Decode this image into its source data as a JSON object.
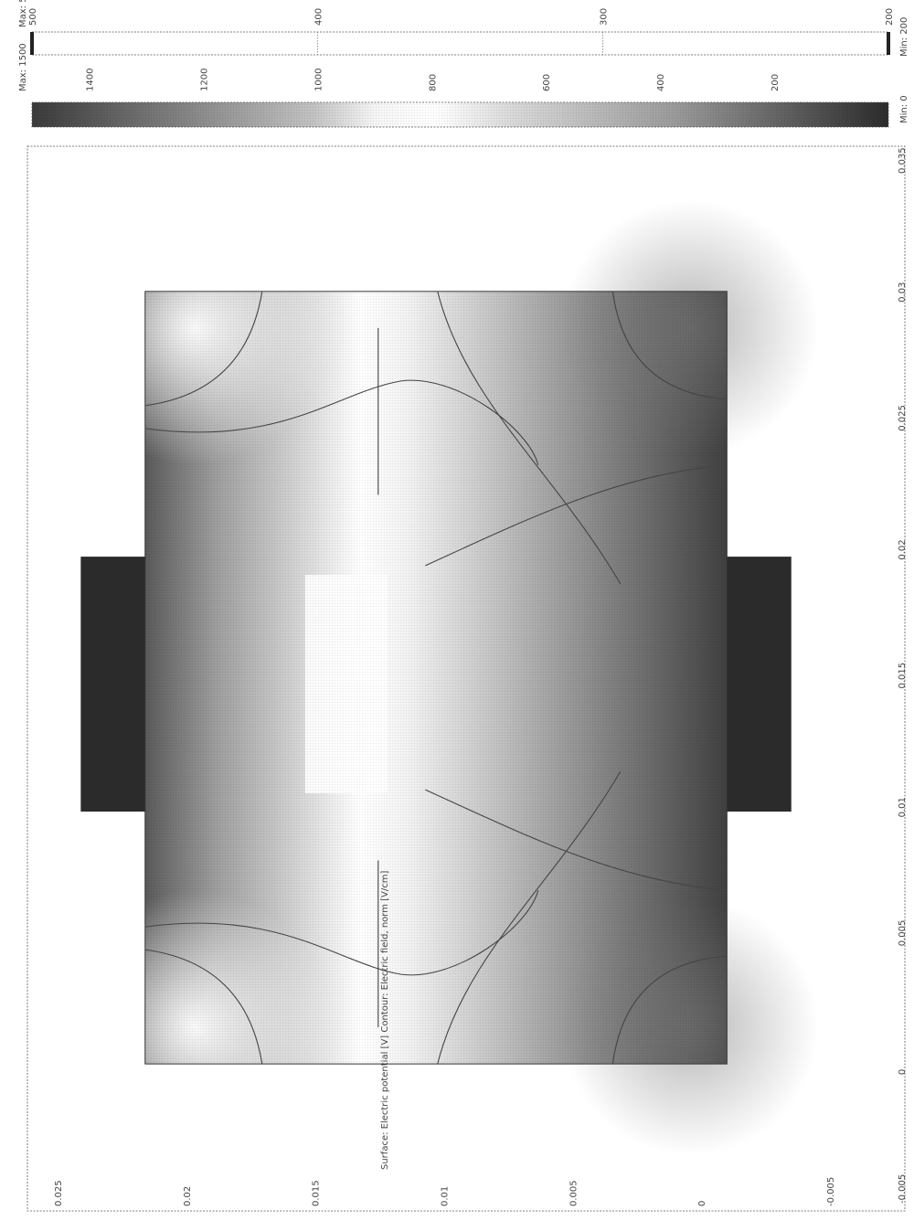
{
  "chart_data": {
    "type": "heatmap",
    "title": "Surface: Electric potential [V]   Contour: Electric field, norm [V/cm]",
    "x_axis": {
      "range": [
        -0.005,
        0.035
      ],
      "ticks": [
        "-0.005",
        "0",
        "0.005",
        "0.01",
        "0.015",
        "0.02",
        "0.025",
        "0.03",
        "0.035"
      ],
      "values": [
        -0.005,
        0,
        0.005,
        0.01,
        0.015,
        0.02,
        0.025,
        0.03,
        0.035
      ]
    },
    "y_axis": {
      "range": [
        -0.005,
        0.025
      ],
      "ticks": [
        "-0.005",
        "0",
        "0.005",
        "0.01",
        "0.015",
        "0.02",
        "0.025"
      ],
      "values": [
        -0.005,
        0,
        0.005,
        0.01,
        0.015,
        0.02,
        0.025
      ]
    },
    "domain": {
      "main_rect": {
        "x": [
          0,
          0.03
        ],
        "y": [
          -0.001,
          0.0216
        ]
      },
      "top_electrode": {
        "x": [
          0.0098,
          0.0197
        ],
        "y": [
          0.0216,
          0.0241
        ]
      },
      "bottom_electrode": {
        "x": [
          0.0098,
          0.0197
        ],
        "y": [
          -0.0035,
          -0.001
        ]
      }
    },
    "surface_colorbar": {
      "label_max": "Max: 1500",
      "label_min": "Min: 0",
      "max": 1500,
      "min": 0,
      "ticks": [
        "1400",
        "1200",
        "1000",
        "800",
        "600",
        "400",
        "200",
        "0"
      ],
      "values": [
        1400,
        1200,
        1000,
        800,
        600,
        400,
        200,
        0
      ]
    },
    "contour_colorbar": {
      "label_max": "Max: 500",
      "label_min": "Min: 200",
      "max": 500,
      "min": 200,
      "ticks": [
        "500",
        "400",
        "300",
        "200"
      ],
      "values": [
        500,
        400,
        300,
        200
      ]
    },
    "colors": {
      "dark": "#2b2b2b",
      "light": "#ffffff",
      "line": "#444444"
    }
  }
}
